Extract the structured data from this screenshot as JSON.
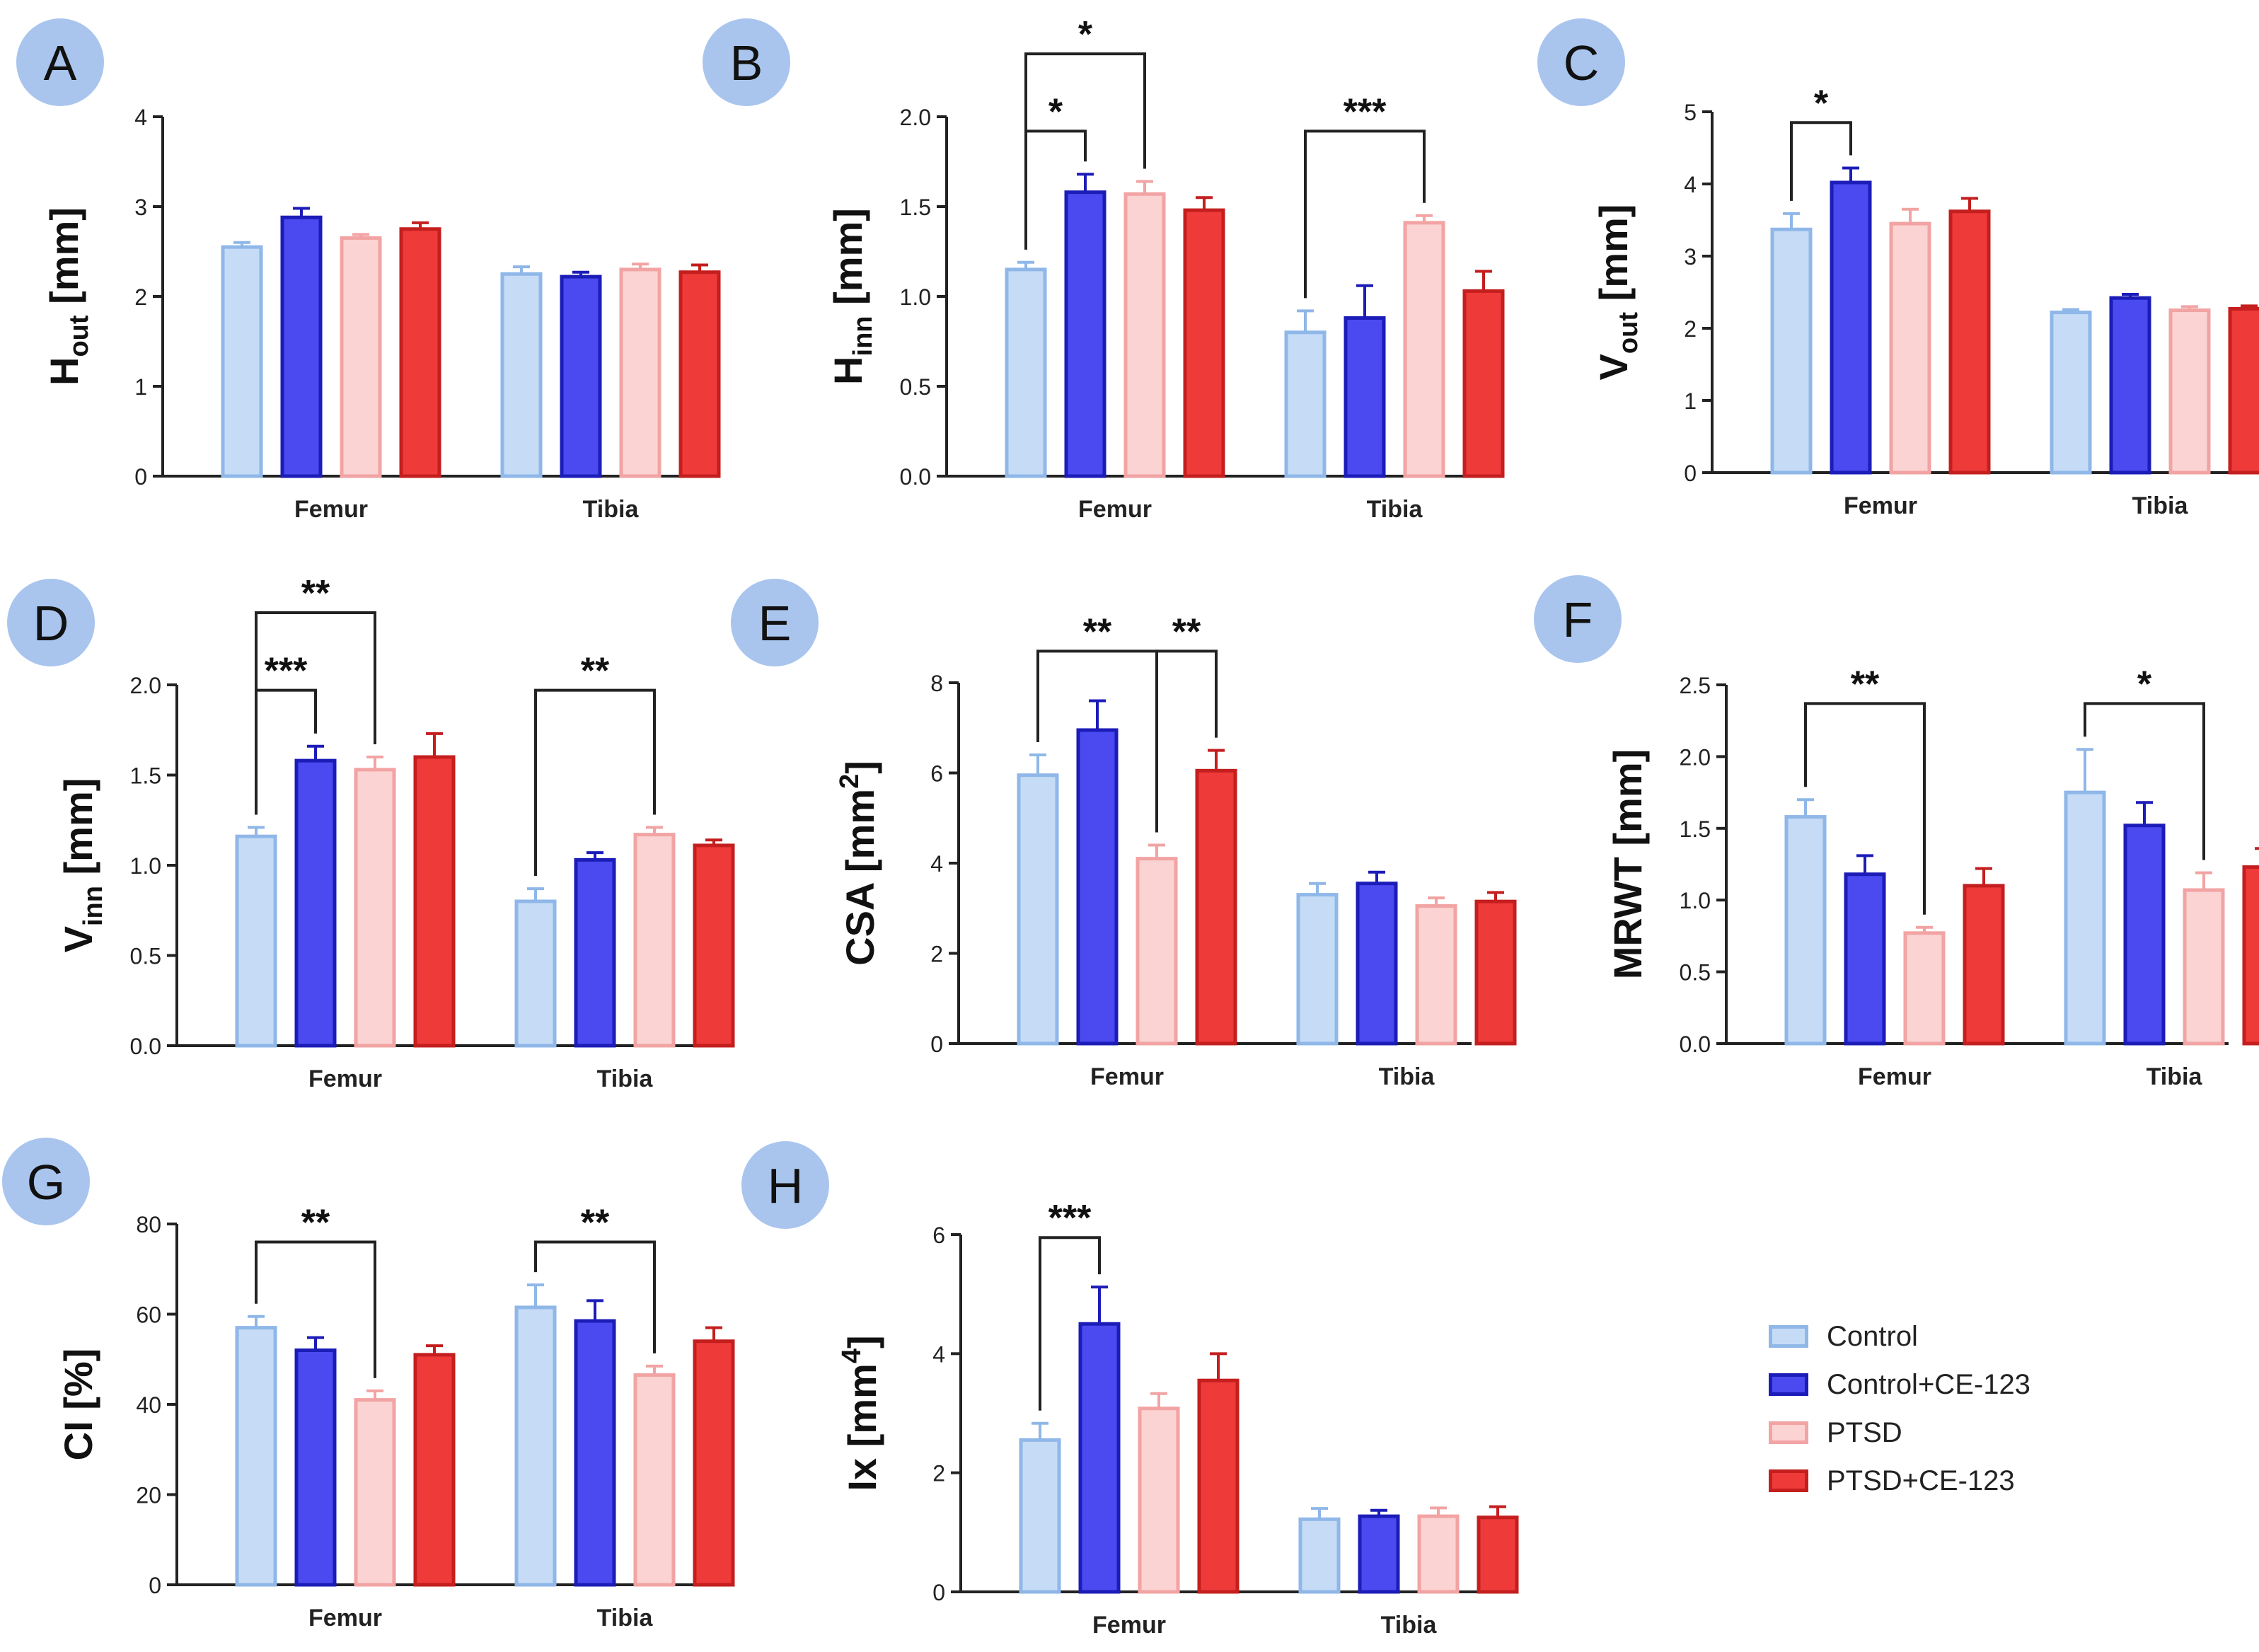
{
  "colors": {
    "Control": {
      "fill": "#c6dcf6",
      "stroke": "#8fb7e8"
    },
    "Control+CE-123": {
      "fill": "#4a4af0",
      "stroke": "#1c1cb8"
    },
    "PTSD": {
      "fill": "#fbd3d3",
      "stroke": "#f2a3a3"
    },
    "PTSD+CE-123": {
      "fill": "#ef3a3a",
      "stroke": "#c41e1e"
    }
  },
  "legend": {
    "items": [
      {
        "label": "Control",
        "key": "Control"
      },
      {
        "label": "Control+CE-123",
        "key": "Control+CE-123"
      },
      {
        "label": "PTSD",
        "key": "PTSD"
      },
      {
        "label": "PTSD+CE-123",
        "key": "PTSD+CE-123"
      }
    ]
  },
  "chart_data": [
    {
      "panel": "A",
      "type": "bar",
      "ylabel": {
        "main": "H",
        "sub": "out",
        "unit": " [mm]"
      },
      "ylim": [
        0,
        4
      ],
      "yticks": [
        "0",
        "1",
        "2",
        "3",
        "4"
      ],
      "categories": [
        "Femur",
        "Tibia"
      ],
      "series": [
        {
          "name": "Control",
          "values": [
            2.55,
            2.25
          ],
          "errors": [
            0.05,
            0.08
          ]
        },
        {
          "name": "Control+CE-123",
          "values": [
            2.88,
            2.22
          ],
          "errors": [
            0.1,
            0.05
          ]
        },
        {
          "name": "PTSD",
          "values": [
            2.65,
            2.3
          ],
          "errors": [
            0.04,
            0.06
          ]
        },
        {
          "name": "PTSD+CE-123",
          "values": [
            2.75,
            2.27
          ],
          "errors": [
            0.07,
            0.08
          ]
        }
      ],
      "significance": []
    },
    {
      "panel": "B",
      "type": "bar",
      "ylabel": {
        "main": "H",
        "sub": "inn",
        "unit": " [mm]"
      },
      "ylim": [
        0,
        2
      ],
      "yticks": [
        "0.0",
        "0.5",
        "1.0",
        "1.5",
        "2.0"
      ],
      "categories": [
        "Femur",
        "Tibia"
      ],
      "series": [
        {
          "name": "Control",
          "values": [
            1.15,
            0.8
          ],
          "errors": [
            0.04,
            0.12
          ]
        },
        {
          "name": "Control+CE-123",
          "values": [
            1.58,
            0.88
          ],
          "errors": [
            0.1,
            0.18
          ]
        },
        {
          "name": "PTSD",
          "values": [
            1.57,
            1.41
          ],
          "errors": [
            0.07,
            0.04
          ]
        },
        {
          "name": "PTSD+CE-123",
          "values": [
            1.48,
            1.03
          ],
          "errors": [
            0.07,
            0.11
          ]
        }
      ],
      "significance": [
        {
          "cat": 0,
          "from": 0,
          "to": 1,
          "y": 1.92,
          "label": "*"
        },
        {
          "cat": 0,
          "from": 0,
          "to": 2,
          "y": 2.35,
          "label": "*"
        },
        {
          "cat": 1,
          "from": 0,
          "to": 2,
          "y": 1.92,
          "label": "***"
        }
      ]
    },
    {
      "panel": "C",
      "type": "bar",
      "ylabel": {
        "main": "V",
        "sub": "out",
        "unit": " [mm]"
      },
      "ylim": [
        0,
        5
      ],
      "yticks": [
        "0",
        "1",
        "2",
        "3",
        "4",
        "5"
      ],
      "categories": [
        "Femur",
        "Tibia"
      ],
      "series": [
        {
          "name": "Control",
          "values": [
            3.37,
            2.22
          ],
          "errors": [
            0.22,
            0.04
          ]
        },
        {
          "name": "Control+CE-123",
          "values": [
            4.02,
            2.42
          ],
          "errors": [
            0.2,
            0.05
          ]
        },
        {
          "name": "PTSD",
          "values": [
            3.45,
            2.25
          ],
          "errors": [
            0.2,
            0.05
          ]
        },
        {
          "name": "PTSD+CE-123",
          "values": [
            3.62,
            2.27
          ],
          "errors": [
            0.18,
            0.04
          ]
        }
      ],
      "significance": [
        {
          "cat": 0,
          "from": 0,
          "to": 1,
          "y": 4.85,
          "label": "*"
        }
      ]
    },
    {
      "panel": "D",
      "type": "bar",
      "ylabel": {
        "main": "V",
        "sub": "inn",
        "unit": " [mm]"
      },
      "ylim": [
        0,
        2
      ],
      "yticks": [
        "0.0",
        "0.5",
        "1.0",
        "1.5",
        "2.0"
      ],
      "categories": [
        "Femur",
        "Tibia"
      ],
      "series": [
        {
          "name": "Control",
          "values": [
            1.16,
            0.8
          ],
          "errors": [
            0.05,
            0.07
          ]
        },
        {
          "name": "Control+CE-123",
          "values": [
            1.58,
            1.03
          ],
          "errors": [
            0.08,
            0.04
          ]
        },
        {
          "name": "PTSD",
          "values": [
            1.53,
            1.17
          ],
          "errors": [
            0.07,
            0.04
          ]
        },
        {
          "name": "PTSD+CE-123",
          "values": [
            1.6,
            1.11
          ],
          "errors": [
            0.13,
            0.03
          ]
        }
      ],
      "significance": [
        {
          "cat": 0,
          "from": 0,
          "to": 1,
          "y": 1.97,
          "label": "***"
        },
        {
          "cat": 0,
          "from": 0,
          "to": 2,
          "y": 2.4,
          "label": "**"
        },
        {
          "cat": 1,
          "from": 0,
          "to": 2,
          "y": 1.97,
          "label": "**"
        }
      ]
    },
    {
      "panel": "E",
      "type": "bar",
      "ylabel": {
        "main": "CSA [mm",
        "sup": "2",
        "unit": "]"
      },
      "ylim": [
        0,
        8
      ],
      "yticks": [
        "0",
        "2",
        "4",
        "6",
        "8"
      ],
      "categories": [
        "Femur",
        "Tibia"
      ],
      "series": [
        {
          "name": "Control",
          "values": [
            5.95,
            3.3
          ],
          "errors": [
            0.45,
            0.25
          ]
        },
        {
          "name": "Control+CE-123",
          "values": [
            6.95,
            3.55
          ],
          "errors": [
            0.65,
            0.25
          ]
        },
        {
          "name": "PTSD",
          "values": [
            4.1,
            3.05
          ],
          "errors": [
            0.3,
            0.18
          ]
        },
        {
          "name": "PTSD+CE-123",
          "values": [
            6.05,
            3.15
          ],
          "errors": [
            0.45,
            0.2
          ]
        }
      ],
      "significance": [
        {
          "cat": 0,
          "from": 0,
          "to": 2,
          "y": 8.7,
          "label": "**"
        },
        {
          "cat": 0,
          "from": 2,
          "to": 3,
          "y": 8.7,
          "label": "**"
        }
      ]
    },
    {
      "panel": "F",
      "type": "bar",
      "ylabel": {
        "main": "MRWT [mm]"
      },
      "ylim": [
        0,
        2.5
      ],
      "yticks": [
        "0.0",
        "0.5",
        "1.0",
        "1.5",
        "2.0",
        "2.5"
      ],
      "categories": [
        "Femur",
        "Tibia"
      ],
      "series": [
        {
          "name": "Control",
          "values": [
            1.58,
            1.75
          ],
          "errors": [
            0.12,
            0.3
          ]
        },
        {
          "name": "Control+CE-123",
          "values": [
            1.18,
            1.52
          ],
          "errors": [
            0.13,
            0.16
          ]
        },
        {
          "name": "PTSD",
          "values": [
            0.77,
            1.07
          ],
          "errors": [
            0.04,
            0.12
          ]
        },
        {
          "name": "PTSD+CE-123",
          "values": [
            1.1,
            1.23
          ],
          "errors": [
            0.12,
            0.13
          ]
        }
      ],
      "significance": [
        {
          "cat": 0,
          "from": 0,
          "to": 2,
          "y": 2.37,
          "label": "**"
        },
        {
          "cat": 1,
          "from": 0,
          "to": 2,
          "y": 2.37,
          "label": "*"
        }
      ]
    },
    {
      "panel": "G",
      "type": "bar",
      "ylabel": {
        "main": "CI [%]"
      },
      "ylim": [
        0,
        80
      ],
      "yticks": [
        "0",
        "20",
        "40",
        "60",
        "80"
      ],
      "categories": [
        "Femur",
        "Tibia"
      ],
      "series": [
        {
          "name": "Control",
          "values": [
            57,
            61.5
          ],
          "errors": [
            2.5,
            5
          ]
        },
        {
          "name": "Control+CE-123",
          "values": [
            52,
            58.5
          ],
          "errors": [
            2.8,
            4.5
          ]
        },
        {
          "name": "PTSD",
          "values": [
            41,
            46.5
          ],
          "errors": [
            2,
            2
          ]
        },
        {
          "name": "PTSD+CE-123",
          "values": [
            51,
            54
          ],
          "errors": [
            2,
            3
          ]
        }
      ],
      "significance": [
        {
          "cat": 0,
          "from": 0,
          "to": 2,
          "y": 76,
          "label": "**"
        },
        {
          "cat": 1,
          "from": 0,
          "to": 2,
          "y": 76,
          "label": "**"
        }
      ]
    },
    {
      "panel": "H",
      "type": "bar",
      "ylabel": {
        "main": "Ix [mm",
        "sup": "4",
        "unit": "]"
      },
      "ylim": [
        0,
        6
      ],
      "yticks": [
        "0",
        "2",
        "4",
        "6"
      ],
      "categories": [
        "Femur",
        "Tibia"
      ],
      "series": [
        {
          "name": "Control",
          "values": [
            2.55,
            1.22
          ],
          "errors": [
            0.28,
            0.18
          ]
        },
        {
          "name": "Control+CE-123",
          "values": [
            4.5,
            1.27
          ],
          "errors": [
            0.62,
            0.1
          ]
        },
        {
          "name": "PTSD",
          "values": [
            3.08,
            1.27
          ],
          "errors": [
            0.25,
            0.14
          ]
        },
        {
          "name": "PTSD+CE-123",
          "values": [
            3.55,
            1.25
          ],
          "errors": [
            0.45,
            0.18
          ]
        }
      ],
      "significance": [
        {
          "cat": 0,
          "from": 0,
          "to": 1,
          "y": 5.95,
          "label": "***"
        }
      ]
    }
  ]
}
